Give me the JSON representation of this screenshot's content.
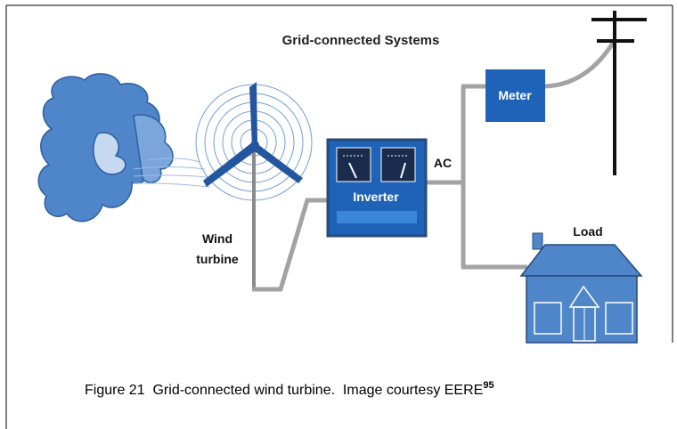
{
  "diagram": {
    "title": "Grid-connected Systems",
    "nodes": [
      {
        "label": "Meter"
      },
      {
        "label": "AC"
      },
      {
        "label": "Inverter"
      },
      {
        "label": [
          "Wind",
          "turbine"
        ]
      },
      {
        "label": "Load"
      }
    ]
  },
  "caption": {
    "text": "Figure 21  Grid-connected wind turbine.  Image courtesy EERE",
    "superscript": "95"
  }
}
